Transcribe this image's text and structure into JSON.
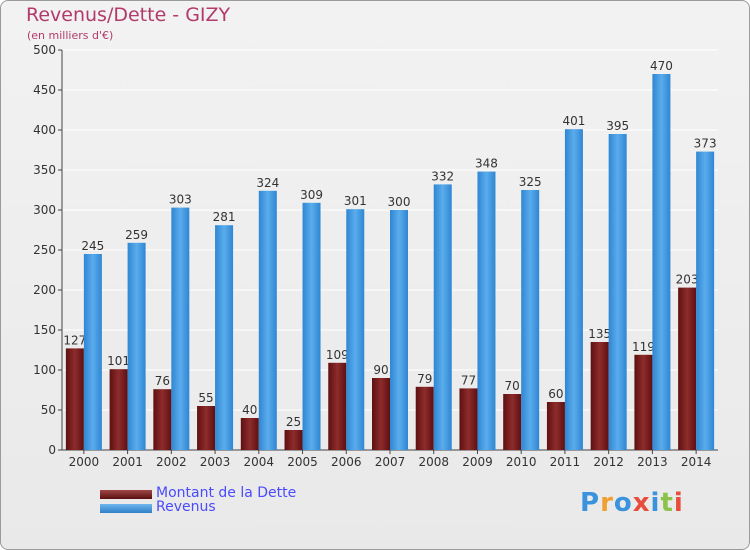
{
  "header": {
    "title": "Revenus/Dette - GIZY",
    "subtitle": "(en milliers d'€)"
  },
  "colors": {
    "dette": "#7a1c1c",
    "revenus": "#3a93dc",
    "title": "#b23a6b",
    "legend_text": "#4a4aff"
  },
  "chart_data": {
    "type": "bar",
    "title": "Revenus/Dette - GIZY",
    "subtitle": "(en milliers d'€)",
    "categories": [
      "2000",
      "2001",
      "2002",
      "2003",
      "2004",
      "2005",
      "2006",
      "2007",
      "2008",
      "2009",
      "2010",
      "2011",
      "2012",
      "2013",
      "2014"
    ],
    "series": [
      {
        "name": "Montant de la Dette",
        "values": [
          127,
          101,
          76,
          55,
          40,
          25,
          109,
          90,
          79,
          77,
          70,
          60,
          135,
          119,
          203
        ]
      },
      {
        "name": "Revenus",
        "values": [
          245,
          259,
          303,
          281,
          324,
          309,
          301,
          300,
          332,
          348,
          325,
          401,
          395,
          470,
          373
        ]
      }
    ],
    "ylim": [
      0,
      500
    ],
    "yticks": [
      0,
      50,
      100,
      150,
      200,
      250,
      300,
      350,
      400,
      450,
      500
    ],
    "grid": true,
    "legend": "bottom-left"
  },
  "legend": {
    "items": [
      {
        "label": "Montant de la Dette"
      },
      {
        "label": "Revenus"
      }
    ]
  },
  "logo": {
    "letters": [
      "P",
      "r",
      "o",
      "x",
      "i",
      "t",
      "i"
    ],
    "colors": [
      "#3a93dc",
      "#f0a030",
      "#3a93dc",
      "#e84c3d",
      "#3a93dc",
      "#8bc34a",
      "#e84c3d"
    ]
  }
}
